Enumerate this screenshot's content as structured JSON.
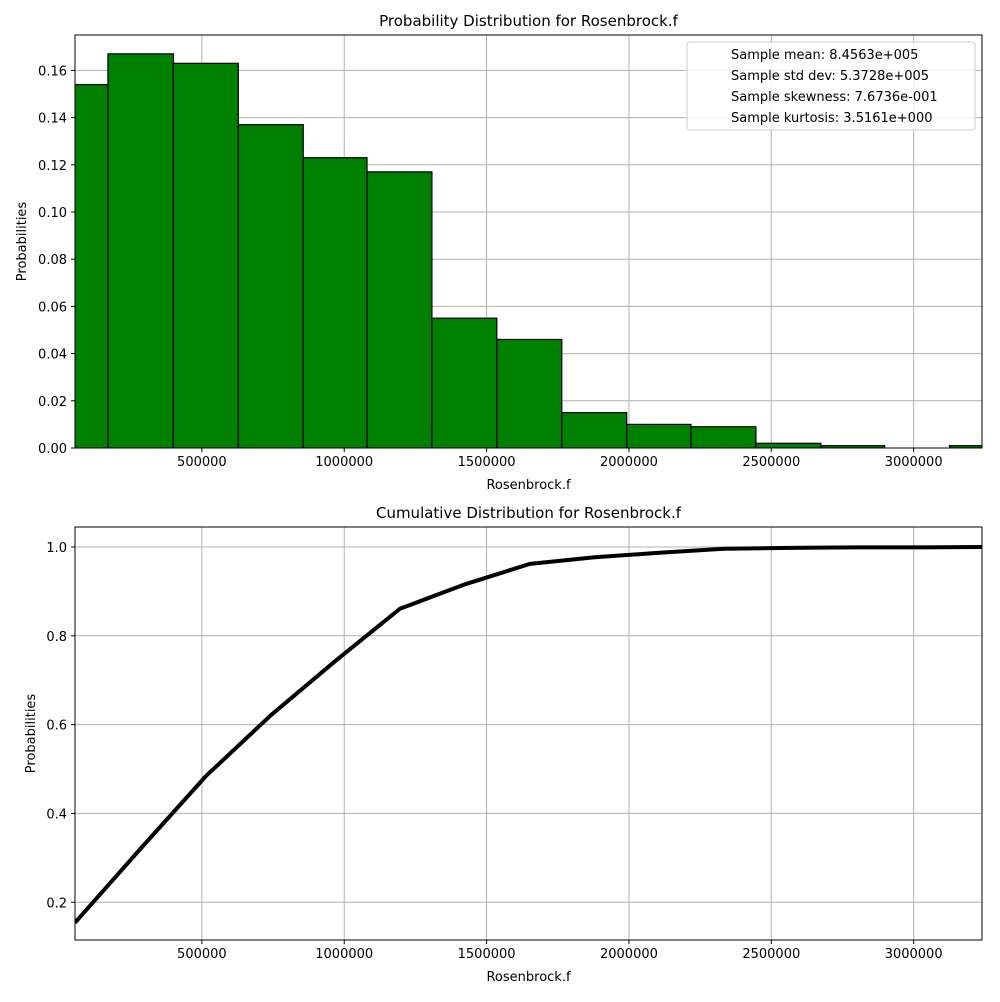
{
  "chart_data": [
    {
      "type": "bar",
      "title": "Probability Distribution for Rosenbrock.f",
      "xlabel": "Rosenbrock.f",
      "ylabel": "Probabilities",
      "xlim": [
        54400,
        3240000
      ],
      "ylim": [
        0.0,
        0.175
      ],
      "grid": true,
      "bar_color": "#008000",
      "edge_color": "#000000",
      "x_ticks": [
        500000,
        1000000,
        1500000,
        2000000,
        2500000,
        3000000
      ],
      "x_tick_labels": [
        "500000",
        "1000000",
        "1500000",
        "2000000",
        "2500000",
        "3000000"
      ],
      "y_ticks": [
        0.0,
        0.02,
        0.04,
        0.06,
        0.08,
        0.1,
        0.12,
        0.14,
        0.16
      ],
      "y_tick_labels": [
        "0.00",
        "0.02",
        "0.04",
        "0.06",
        "0.08",
        "0.10",
        "0.12",
        "0.14",
        "0.16"
      ],
      "bin_edges": [
        -62000,
        170000,
        400000,
        628000,
        856000,
        1080000,
        1308000,
        1536000,
        1764000,
        1992000,
        2218000,
        2446000,
        2674000,
        2898000,
        3126000,
        3354000
      ],
      "values": [
        0.154,
        0.167,
        0.163,
        0.137,
        0.123,
        0.117,
        0.055,
        0.046,
        0.015,
        0.01,
        0.009,
        0.002,
        0.001,
        0.0,
        0.001
      ],
      "legend": {
        "position": "upper right",
        "entries": [
          "Sample mean: 8.4563e+005",
          "Sample std dev: 5.3728e+005",
          "Sample skewness: 7.6736e-001",
          "Sample kurtosis: 3.5161e+000"
        ]
      }
    },
    {
      "type": "line",
      "title": "Cumulative Distribution for Rosenbrock.f",
      "xlabel": "Rosenbrock.f",
      "ylabel": "Probabilities",
      "xlim": [
        54400,
        3240000
      ],
      "ylim": [
        0.115,
        1.045
      ],
      "grid": true,
      "line_color": "#000000",
      "x_ticks": [
        500000,
        1000000,
        1500000,
        2000000,
        2500000,
        3000000
      ],
      "x_tick_labels": [
        "500000",
        "1000000",
        "1500000",
        "2000000",
        "2500000",
        "3000000"
      ],
      "y_ticks": [
        0.2,
        0.4,
        0.6,
        0.8,
        1.0
      ],
      "y_tick_labels": [
        "0.2",
        "0.4",
        "0.6",
        "0.8",
        "1.0"
      ],
      "x": [
        54400,
        285000,
        514000,
        742000,
        970000,
        1196000,
        1424000,
        1652000,
        1880000,
        2106000,
        2334000,
        2562000,
        2788000,
        3016000,
        3240000
      ],
      "y": [
        0.154,
        0.321,
        0.484,
        0.621,
        0.744,
        0.861,
        0.916,
        0.962,
        0.977,
        0.987,
        0.996,
        0.998,
        0.999,
        0.999,
        1.0
      ]
    }
  ]
}
